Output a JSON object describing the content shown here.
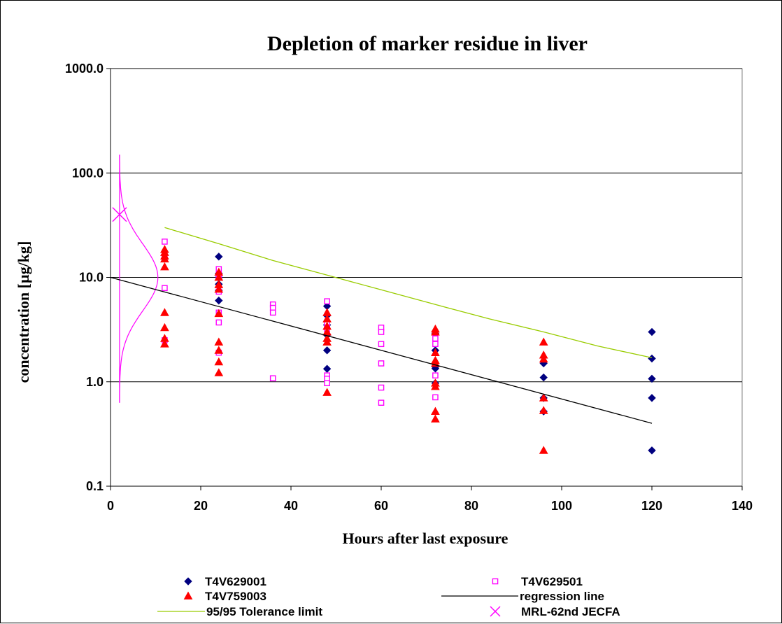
{
  "chart_data": {
    "type": "scatter",
    "title": "Depletion of marker residue in liver",
    "xlabel": "Hours after last exposure",
    "ylabel": "concentration [µg/kg]",
    "xlim": [
      0,
      140
    ],
    "ylim": [
      0.1,
      1000
    ],
    "y_scale": "log",
    "x_ticks": [
      "0",
      "20",
      "40",
      "60",
      "80",
      "100",
      "120",
      "140"
    ],
    "y_ticks": [
      "0.1",
      "1.0",
      "10.0",
      "100.0",
      "1000.0"
    ],
    "grid": "horizontal major gridlines",
    "legend_position": "bottom",
    "series": [
      {
        "name": "T4V629001",
        "marker": "diamond",
        "color": "#000080",
        "points": [
          [
            24,
            15.8
          ],
          [
            24,
            10.9
          ],
          [
            24,
            10.0
          ],
          [
            24,
            8.6
          ],
          [
            24,
            7.5
          ],
          [
            24,
            6.0
          ],
          [
            48,
            5.3
          ],
          [
            48,
            4.3
          ],
          [
            48,
            3.5
          ],
          [
            48,
            2.8
          ],
          [
            48,
            2.0
          ],
          [
            48,
            1.33
          ],
          [
            72,
            2.9
          ],
          [
            72,
            2.0
          ],
          [
            72,
            1.4
          ],
          [
            72,
            1.34
          ],
          [
            72,
            0.97
          ],
          [
            96,
            1.5
          ],
          [
            96,
            1.1
          ],
          [
            96,
            0.7
          ],
          [
            96,
            0.52
          ],
          [
            120,
            3.0
          ],
          [
            120,
            1.67
          ],
          [
            120,
            1.07
          ],
          [
            120,
            0.7
          ],
          [
            120,
            0.22
          ]
        ]
      },
      {
        "name": "T4V629501",
        "marker": "open-square",
        "color": "#ff00ff",
        "points": [
          [
            12,
            22.0
          ],
          [
            12,
            15.0
          ],
          [
            12,
            7.9
          ],
          [
            12,
            2.5
          ],
          [
            24,
            12.0
          ],
          [
            24,
            10.5
          ],
          [
            24,
            7.3
          ],
          [
            24,
            4.6
          ],
          [
            24,
            3.7
          ],
          [
            24,
            1.9
          ],
          [
            36,
            5.5
          ],
          [
            36,
            5.1
          ],
          [
            36,
            4.6
          ],
          [
            36,
            1.08
          ],
          [
            48,
            5.9
          ],
          [
            48,
            3.6
          ],
          [
            48,
            3.2
          ],
          [
            48,
            1.15
          ],
          [
            48,
            1.07
          ],
          [
            48,
            0.97
          ],
          [
            60,
            3.3
          ],
          [
            60,
            3.0
          ],
          [
            60,
            2.3
          ],
          [
            60,
            1.5
          ],
          [
            60,
            0.88
          ],
          [
            60,
            0.63
          ],
          [
            72,
            2.6
          ],
          [
            72,
            2.3
          ],
          [
            72,
            1.15
          ],
          [
            72,
            0.71
          ]
        ]
      },
      {
        "name": "T4V759003",
        "marker": "triangle",
        "color": "#ff0000",
        "points": [
          [
            12,
            18.5
          ],
          [
            12,
            17.3
          ],
          [
            12,
            16.0
          ],
          [
            12,
            15.0
          ],
          [
            12,
            12.6
          ],
          [
            12,
            4.6
          ],
          [
            12,
            3.3
          ],
          [
            12,
            2.6
          ],
          [
            12,
            2.3
          ],
          [
            24,
            11.2
          ],
          [
            24,
            10.0
          ],
          [
            24,
            8.5
          ],
          [
            24,
            7.7
          ],
          [
            24,
            4.5
          ],
          [
            24,
            2.4
          ],
          [
            24,
            2.0
          ],
          [
            24,
            1.55
          ],
          [
            24,
            1.22
          ],
          [
            48,
            4.6
          ],
          [
            48,
            4.0
          ],
          [
            48,
            3.4
          ],
          [
            48,
            3.0
          ],
          [
            48,
            2.6
          ],
          [
            48,
            2.4
          ],
          [
            48,
            0.79
          ],
          [
            72,
            3.2
          ],
          [
            72,
            3.0
          ],
          [
            72,
            1.9
          ],
          [
            72,
            1.6
          ],
          [
            72,
            1.5
          ],
          [
            72,
            0.97
          ],
          [
            72,
            0.9
          ],
          [
            72,
            0.52
          ],
          [
            72,
            0.44
          ],
          [
            96,
            2.4
          ],
          [
            96,
            1.8
          ],
          [
            96,
            1.65
          ],
          [
            96,
            0.7
          ],
          [
            96,
            0.53
          ],
          [
            96,
            0.22
          ]
        ]
      },
      {
        "name": "regression line",
        "marker": "line",
        "color": "#000000",
        "points": [
          [
            0,
            10.0
          ],
          [
            120,
            0.4
          ]
        ]
      },
      {
        "name": "95/95 Tolerance limit",
        "marker": "line",
        "color": "#99cc00",
        "points": [
          [
            12,
            30.0
          ],
          [
            24,
            21.0
          ],
          [
            36,
            14.5
          ],
          [
            48,
            10.5
          ],
          [
            60,
            7.6
          ],
          [
            72,
            5.5
          ],
          [
            84,
            4.0
          ],
          [
            96,
            3.0
          ],
          [
            108,
            2.2
          ],
          [
            120,
            1.7
          ]
        ]
      },
      {
        "name": "MRL-62nd JECFA",
        "marker": "x",
        "color": "#ff00ff",
        "points": [
          [
            2,
            40
          ]
        ]
      }
    ],
    "distribution_curve": {
      "color": "#ff00ff",
      "x_base": 2,
      "y_range": [
        0.63,
        150
      ],
      "peak_x": 10.5,
      "peak_y": 10,
      "spread_log10": 0.32
    }
  },
  "legend": {
    "items": [
      {
        "label": "T4V629001",
        "marker": "diamond",
        "color": "#000080"
      },
      {
        "label": "T4V629501",
        "marker": "open-square",
        "color": "#ff00ff"
      },
      {
        "label": "T4V759003",
        "marker": "triangle",
        "color": "#ff0000"
      },
      {
        "label": "regression line",
        "marker": "line",
        "color": "#000000"
      },
      {
        "label": "95/95 Tolerance limit",
        "marker": "line",
        "color": "#99cc00"
      },
      {
        "label": "MRL-62nd JECFA",
        "marker": "x",
        "color": "#ff00ff"
      }
    ]
  }
}
